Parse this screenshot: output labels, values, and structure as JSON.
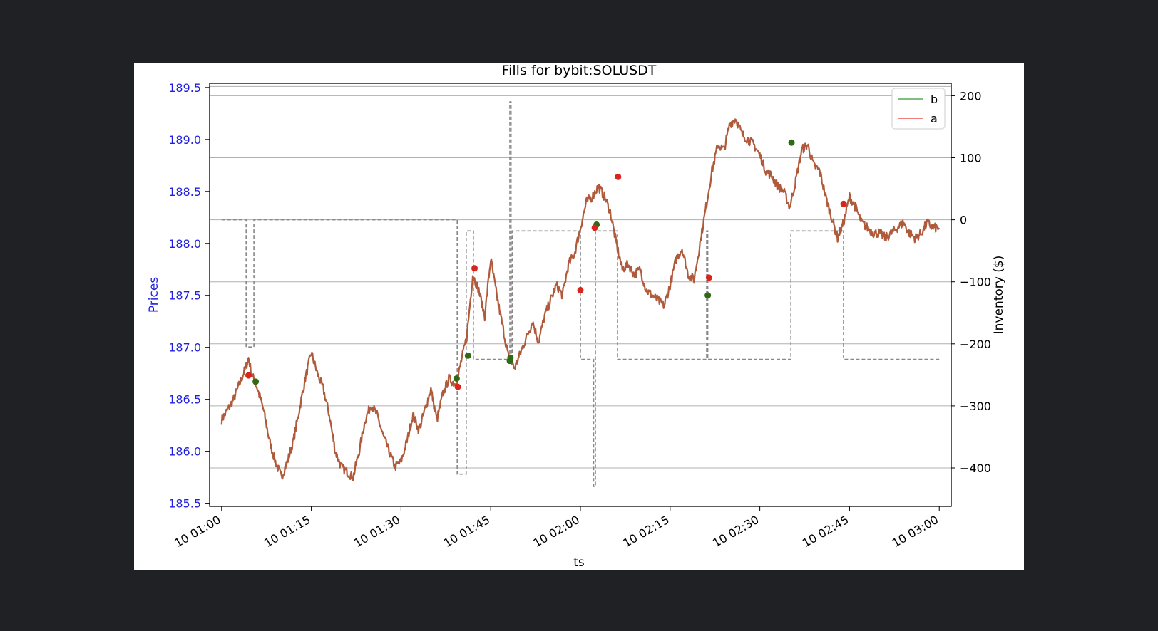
{
  "chart_data": {
    "type": "line",
    "title": "Fills for bybit:SOLUSDT",
    "xlabel": "ts",
    "ylabel": "Prices",
    "ylabel_right": "Inventory ($)",
    "xlim": [
      "10 00:58",
      "10 03:02"
    ],
    "ylim": [
      185.47,
      189.54
    ],
    "ylim_right": [
      -462,
      220
    ],
    "x_ticks": [
      "10 01:00",
      "10 01:15",
      "10 01:30",
      "10 01:45",
      "10 02:00",
      "10 02:15",
      "10 02:30",
      "10 02:45",
      "10 03:00"
    ],
    "y_ticks": [
      185.5,
      186.0,
      186.5,
      187.0,
      187.5,
      188.0,
      188.5,
      189.0,
      189.5
    ],
    "y_tick_labels": [
      "185.5",
      "186.0",
      "186.5",
      "187.0",
      "187.5",
      "188.0",
      "188.5",
      "189.0",
      "189.5"
    ],
    "y_right_ticks": [
      -400,
      -300,
      -200,
      -100,
      0,
      100,
      200
    ],
    "y_right_tick_labels": [
      "−400",
      "−300",
      "−200",
      "−100",
      "0",
      "100",
      "200"
    ],
    "grid": "horizontal lines at right-axis ticks",
    "legend": {
      "position": "top-right",
      "entries": [
        {
          "label": "b",
          "color": "#7fbf7f"
        },
        {
          "label": "a",
          "color": "#f08080"
        }
      ]
    },
    "colors": {
      "left_axis": "#1f1fe0",
      "price_line": "#b05a3c",
      "inventory_line": "#888888",
      "bid_fill": "#2e6b12",
      "ask_fill": "#d8261f"
    },
    "series": [
      {
        "name": "b",
        "kind": "price",
        "x_minutes": [
          0,
          2,
          4,
          4.5,
          5,
          6,
          7,
          8,
          9,
          10,
          11,
          12,
          13,
          14,
          15,
          16,
          17,
          18,
          19,
          20,
          21,
          22,
          23,
          24,
          25,
          26,
          27,
          28,
          29,
          30,
          31,
          32,
          33,
          34,
          35,
          36,
          37,
          38,
          39,
          39.5,
          40,
          41,
          42,
          43,
          44,
          45,
          46,
          47,
          48,
          49,
          50,
          51,
          52,
          53,
          54,
          55,
          56,
          57,
          58,
          59,
          60,
          61,
          62,
          63,
          64,
          65,
          66,
          67,
          68,
          69,
          70,
          71,
          72,
          73,
          74,
          75,
          76,
          77,
          78,
          79,
          80,
          81,
          82,
          83,
          84,
          85,
          86,
          87,
          88,
          89,
          90,
          91,
          92,
          93,
          94,
          95,
          96,
          97,
          98,
          99,
          100,
          101,
          102,
          103,
          104,
          105,
          106,
          107,
          108,
          109,
          110,
          111,
          112,
          113,
          114,
          115,
          116,
          117,
          118,
          119,
          120
        ],
        "values": [
          186.3,
          186.5,
          186.8,
          186.9,
          186.75,
          186.6,
          186.4,
          186.1,
          185.9,
          185.75,
          185.9,
          186.1,
          186.4,
          186.7,
          186.95,
          186.75,
          186.6,
          186.35,
          186.0,
          185.85,
          185.8,
          185.75,
          186.0,
          186.3,
          186.45,
          186.35,
          186.15,
          186.0,
          185.85,
          185.9,
          186.1,
          186.35,
          186.2,
          186.4,
          186.6,
          186.3,
          186.55,
          186.7,
          186.65,
          186.7,
          186.85,
          187.1,
          187.7,
          187.55,
          187.3,
          187.85,
          187.5,
          187.2,
          186.9,
          186.8,
          186.95,
          187.1,
          187.25,
          187.05,
          187.3,
          187.45,
          187.6,
          187.5,
          187.8,
          187.9,
          188.15,
          188.4,
          188.45,
          188.55,
          188.45,
          188.3,
          188.0,
          187.75,
          187.8,
          187.7,
          187.75,
          187.55,
          187.5,
          187.45,
          187.4,
          187.6,
          187.85,
          187.95,
          187.7,
          187.65,
          188.0,
          188.35,
          188.7,
          188.95,
          188.9,
          189.15,
          189.2,
          189.05,
          189.0,
          188.95,
          188.85,
          188.7,
          188.65,
          188.55,
          188.5,
          188.35,
          188.6,
          188.9,
          188.95,
          188.75,
          188.7,
          188.45,
          188.25,
          188.05,
          188.2,
          188.45,
          188.35,
          188.2,
          188.15,
          188.1,
          188.1,
          188.05,
          188.1,
          188.15,
          188.2,
          188.1,
          188.05,
          188.1,
          188.2,
          188.15,
          188.15
        ]
      },
      {
        "name": "inventory",
        "kind": "step",
        "x_minutes": [
          0,
          4.1,
          4.1,
          5.4,
          5.4,
          39.4,
          39.4,
          40.9,
          40.9,
          42.1,
          42.1,
          48.2,
          48.2,
          48.4,
          48.4,
          48.6,
          48.6,
          60.0,
          60.0,
          62.2,
          62.2,
          62.5,
          62.5,
          62.7,
          62.7,
          66.2,
          66.2,
          81.1,
          81.1,
          81.3,
          81.3,
          95.2,
          95.2,
          104.0,
          104.0,
          120
        ],
        "values": [
          0,
          0,
          -205,
          -205,
          0,
          0,
          -410,
          -410,
          -18,
          -18,
          -225,
          -225,
          190,
          190,
          -225,
          -225,
          -18,
          -18,
          -225,
          -225,
          -430,
          -430,
          -18,
          -18,
          -18,
          -18,
          -225,
          -225,
          -18,
          -18,
          -225,
          -225,
          -18,
          -18,
          -225,
          -225
        ]
      },
      {
        "name": "b",
        "kind": "fills",
        "x_minutes": [
          5.7,
          39.3,
          41.2,
          48.3,
          62.7,
          81.3,
          95.3,
          48.2
        ],
        "values": [
          186.67,
          186.7,
          186.92,
          186.9,
          188.18,
          187.5,
          188.97,
          186.87
        ]
      },
      {
        "name": "a",
        "kind": "fills",
        "x_minutes": [
          4.5,
          39.5,
          42.3,
          60.0,
          62.4,
          66.3,
          81.5,
          104.0
        ],
        "values": [
          186.73,
          186.62,
          187.76,
          187.55,
          188.15,
          188.64,
          187.67,
          188.38
        ]
      }
    ]
  }
}
